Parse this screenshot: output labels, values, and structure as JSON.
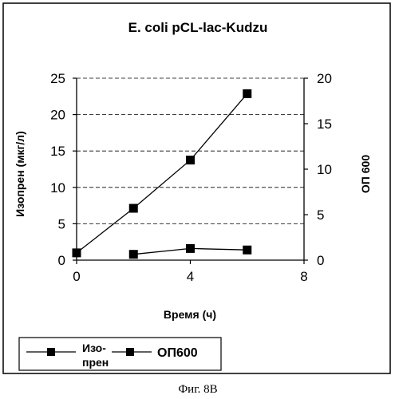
{
  "caption": "Фиг. 8В",
  "chart_data": {
    "type": "line",
    "title": "E. coli pCL-lac-Kudzu",
    "xlabel": "Время (ч)",
    "ylabel_left": "Изопрен (мкг/л)",
    "ylabel_right": "ОП 600",
    "xlim": [
      0,
      8
    ],
    "xticks": [
      0,
      4,
      8
    ],
    "ylim_left": [
      0,
      25
    ],
    "yticks_left": [
      0,
      5,
      10,
      15,
      20,
      25
    ],
    "ylim_right": [
      0,
      20
    ],
    "yticks_right": [
      0,
      5,
      10,
      15,
      20
    ],
    "grid": "horizontal dashed",
    "legend_position": "bottom",
    "series": [
      {
        "name": "Изо-\nпрен",
        "legend_lines": [
          "Изо-",
          "прен"
        ],
        "axis": "left",
        "x": [
          2,
          4,
          6
        ],
        "y": [
          0.8,
          1.6,
          1.4
        ]
      },
      {
        "name": "ОП600",
        "legend_lines": [
          "ОП600"
        ],
        "axis": "right",
        "x": [
          0,
          2,
          4,
          6
        ],
        "y": [
          0.8,
          5.7,
          11.0,
          18.3
        ]
      }
    ],
    "colors": {
      "line": "#000000",
      "marker": "#000000",
      "grid": "#000000"
    }
  }
}
